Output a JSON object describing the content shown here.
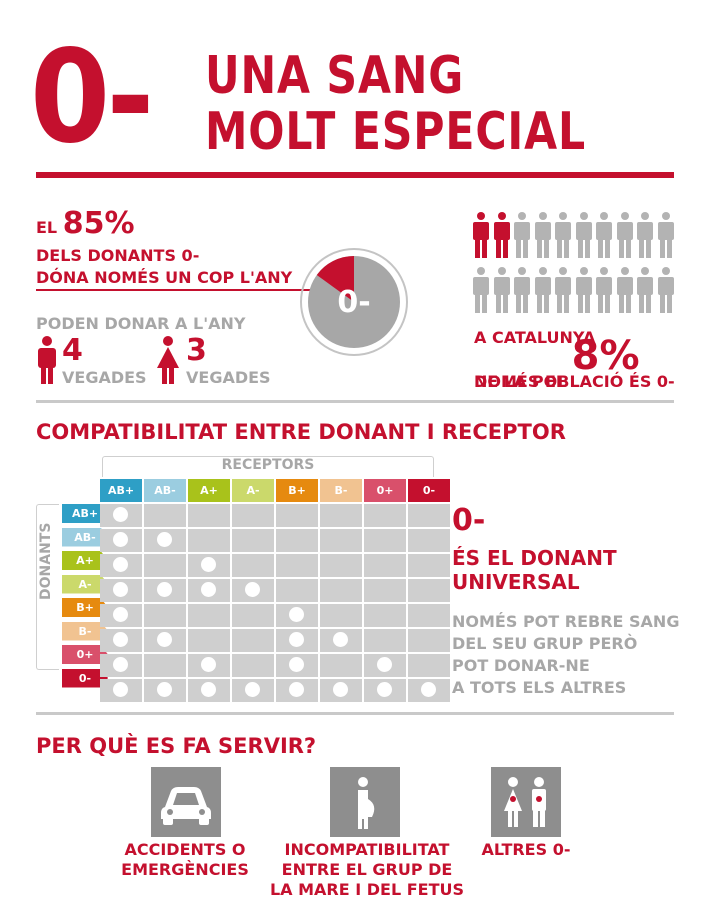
{
  "header": {
    "big_label": "0-",
    "title_line1": "UNA SANG",
    "title_line2": "MOLT ESPECIAL"
  },
  "donors": {
    "el": "EL",
    "pct": "85%",
    "line2": "DELS DONANTS 0-",
    "line3": "DÓNA NOMÉS UN COP L'ANY",
    "pie_label": "0-",
    "pie_share": 0.15,
    "can_donate": "PODEN DONAR A L'ANY",
    "men_times": "4",
    "women_times": "3",
    "times_label": "VEGADES"
  },
  "population": {
    "line1": "A CATALUNYA",
    "line2": "NOMÉS EL",
    "pct": "8%",
    "line3": "DE LA POBLACIÓ ÉS 0-",
    "highlighted_people": 2,
    "total_people": 20
  },
  "compat": {
    "section_title": "COMPATIBILITAT ENTRE DONANT I RECEPTOR",
    "receptors_label": "RECEPTORS",
    "donants_label": "DONANTS",
    "types": [
      "AB+",
      "AB-",
      "A+",
      "A-",
      "B+",
      "B-",
      "0+",
      "0-"
    ],
    "colors": [
      "#2e9fc6",
      "#9bcde0",
      "#a9c21b",
      "#cbd96b",
      "#e68a0f",
      "#f1c391",
      "#d9506b",
      "#c4102e"
    ],
    "matrix": [
      [
        1,
        0,
        0,
        0,
        0,
        0,
        0,
        0
      ],
      [
        1,
        1,
        0,
        0,
        0,
        0,
        0,
        0
      ],
      [
        1,
        0,
        1,
        0,
        0,
        0,
        0,
        0
      ],
      [
        1,
        1,
        1,
        1,
        0,
        0,
        0,
        0
      ],
      [
        1,
        0,
        0,
        0,
        1,
        0,
        0,
        0
      ],
      [
        1,
        1,
        0,
        0,
        1,
        1,
        0,
        0
      ],
      [
        1,
        0,
        1,
        0,
        1,
        0,
        1,
        0
      ],
      [
        1,
        1,
        1,
        1,
        1,
        1,
        1,
        1
      ]
    ],
    "universal_big": "0-",
    "universal_line1": "ÉS EL DONANT",
    "universal_line2": "UNIVERSAL",
    "note_lines": [
      "NOMÉS POT REBRE SANG",
      "DEL SEU GRUP PERÒ",
      "POT DONAR-NE",
      "A TOTS ELS ALTRES"
    ]
  },
  "uses": {
    "section_title": "PER QUÈ ES FA SERVIR?",
    "items": [
      {
        "icon": "car-icon",
        "lines": [
          "ACCIDENTS O",
          "EMERGÈNCIES"
        ]
      },
      {
        "icon": "pregnant-woman-icon",
        "lines": [
          "INCOMPATIBILITAT",
          "ENTRE EL GRUP DE",
          "LA MARE I DEL FETUS"
        ]
      },
      {
        "icon": "man-woman-icon",
        "lines": [
          "ALTRES 0-"
        ]
      }
    ]
  }
}
